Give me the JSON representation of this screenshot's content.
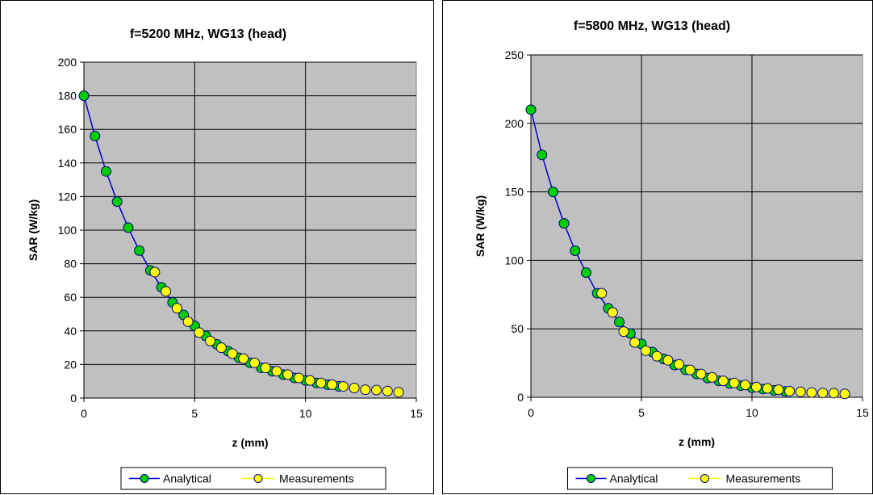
{
  "chart_data": [
    {
      "type": "line",
      "title": "f=5200 MHz, WG13  (head)",
      "xlabel": "z (mm)",
      "ylabel": "SAR (W/kg)",
      "xlim": [
        0,
        15
      ],
      "ylim": [
        0,
        200
      ],
      "xticks": [
        "0",
        "5",
        "10",
        "15"
      ],
      "yticks": [
        "0",
        "20",
        "40",
        "60",
        "80",
        "100",
        "120",
        "140",
        "160",
        "180",
        "200"
      ],
      "grid": true,
      "background": "#c0c0c0",
      "legend_position": "bottom",
      "series": [
        {
          "name": "Analytical",
          "color": "#0000cc",
          "marker_color": "#00cc00",
          "x": [
            0,
            0.5,
            1,
            1.5,
            2,
            2.5,
            3,
            3.5,
            4,
            4.5,
            5,
            5.5,
            6,
            6.5,
            7,
            7.5,
            8,
            8.5,
            9,
            9.5,
            10,
            10.5,
            11,
            11.5
          ],
          "y": [
            180,
            156,
            135,
            117,
            101.5,
            87.8,
            76,
            66,
            57,
            49.5,
            43,
            37,
            32,
            28,
            24,
            21,
            18,
            16,
            14,
            12,
            10.5,
            9,
            8,
            7
          ]
        },
        {
          "name": "Measurements",
          "color": "#ffff00",
          "marker_color": "#ffff00",
          "x": [
            3.2,
            3.7,
            4.2,
            4.7,
            5.2,
            5.7,
            6.2,
            6.7,
            7.2,
            7.7,
            8.2,
            8.7,
            9.2,
            9.7,
            10.2,
            10.7,
            11.2,
            11.7,
            12.2,
            12.7,
            13.2,
            13.7,
            14.2
          ],
          "y": [
            75,
            63.5,
            53.5,
            45.5,
            39,
            34,
            30,
            26.5,
            23.5,
            21,
            18,
            16,
            14,
            12,
            10.5,
            9,
            8,
            7,
            6,
            5,
            4.8,
            4.2,
            3.5
          ]
        }
      ],
      "legend": [
        "Analytical",
        "Measurements"
      ]
    },
    {
      "type": "line",
      "title": "f=5800 MHz, WG13  (head)",
      "xlabel": "z (mm)",
      "ylabel": "SAR (W/kg)",
      "xlim": [
        0,
        15
      ],
      "ylim": [
        0,
        250
      ],
      "xticks": [
        "0",
        "5",
        "10",
        "15"
      ],
      "yticks": [
        "0",
        "50",
        "100",
        "150",
        "200",
        "250"
      ],
      "grid": true,
      "background": "#c0c0c0",
      "legend_position": "bottom",
      "series": [
        {
          "name": "Analytical",
          "color": "#0000cc",
          "marker_color": "#00cc00",
          "x": [
            0,
            0.5,
            1,
            1.5,
            2,
            2.5,
            3,
            3.5,
            4,
            4.5,
            5,
            5.5,
            6,
            6.5,
            7,
            7.5,
            8,
            8.5,
            9,
            9.5,
            10,
            10.5,
            11,
            11.5
          ],
          "y": [
            210,
            177,
            150,
            127,
            107,
            91,
            76,
            65,
            55,
            46.5,
            39,
            33,
            28,
            23.5,
            20,
            17,
            14,
            12,
            10,
            8.5,
            7,
            6,
            5,
            4.3
          ]
        },
        {
          "name": "Measurements",
          "color": "#ffff00",
          "marker_color": "#ffff00",
          "x": [
            3.2,
            3.7,
            4.2,
            4.7,
            5.2,
            5.7,
            6.2,
            6.7,
            7.2,
            7.7,
            8.2,
            8.7,
            9.2,
            9.7,
            10.2,
            10.7,
            11.2,
            11.7,
            12.2,
            12.7,
            13.2,
            13.7,
            14.2
          ],
          "y": [
            76,
            62,
            48,
            40,
            34,
            30,
            27,
            24,
            20,
            17,
            14.5,
            12,
            10.5,
            9,
            7.5,
            6.5,
            5.5,
            4.5,
            4,
            3.5,
            3.2,
            3,
            2.5
          ]
        }
      ],
      "legend": [
        "Analytical",
        "Measurements"
      ]
    }
  ]
}
